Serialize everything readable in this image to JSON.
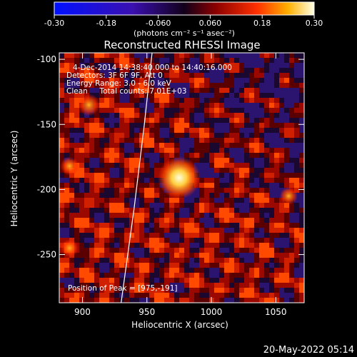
{
  "chart_data": {
    "type": "heatmap",
    "title": "Reconstructed RHESSI Image",
    "xlabel": "Heliocentric X (arcsec)",
    "ylabel": "Heliocentric Y (arcsec)",
    "xlim": [
      882,
      1072
    ],
    "ylim": [
      -287,
      -95
    ],
    "x_ticks": [
      900,
      950,
      1000,
      1050
    ],
    "y_ticks": [
      -100,
      -150,
      -200,
      -250
    ],
    "x_tick_labels": [
      "900",
      "950",
      "1000",
      "1050"
    ],
    "y_tick_labels": [
      "-100",
      "-150",
      "-200",
      "-250"
    ],
    "colorbar": {
      "range": [
        -0.3,
        0.3
      ],
      "ticks": [
        -0.3,
        -0.18,
        -0.06,
        0.06,
        0.18,
        0.3
      ],
      "tick_labels": [
        "-0.30",
        "-0.18",
        "-0.060",
        "0.060",
        "0.18",
        "0.30"
      ],
      "unit_label": "(photons cm⁻² s⁻¹ asec⁻²)"
    },
    "annotations": [
      "4-Dec-2014 14:38:40.000 to 14:40:16.000",
      "Detectors: 3F 6F 9F, Att 0",
      "Energy Range: 3.0 - 6.0 keV",
      "Clean     Total counts: 7.01E+03"
    ],
    "peak_label": "Position of Peak = [975,-191]",
    "peak": {
      "x": 975,
      "y": -191,
      "value": 0.3
    },
    "secondary_sources": [
      {
        "x": 905,
        "y": -135,
        "value": 0.22
      },
      {
        "x": 890,
        "y": -182,
        "value": 0.14
      },
      {
        "x": 1060,
        "y": -205,
        "value": 0.12
      },
      {
        "x": 890,
        "y": -245,
        "value": 0.12
      }
    ],
    "limb_curve": [
      {
        "x": 954,
        "y": -95
      },
      {
        "x": 948,
        "y": -150
      },
      {
        "x": 940,
        "y": -215
      },
      {
        "x": 930,
        "y": -287
      }
    ],
    "grid": false
  },
  "footer": {
    "timestamp": "20-May-2022 05:14"
  }
}
